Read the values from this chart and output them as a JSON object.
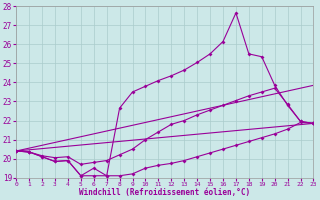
{
  "xlabel": "Windchill (Refroidissement éolien,°C)",
  "xlim": [
    0,
    23
  ],
  "ylim": [
    19,
    28
  ],
  "yticks": [
    19,
    20,
    21,
    22,
    23,
    24,
    25,
    26,
    27,
    28
  ],
  "xticks": [
    0,
    1,
    2,
    3,
    4,
    5,
    6,
    7,
    8,
    9,
    10,
    11,
    12,
    13,
    14,
    15,
    16,
    17,
    18,
    19,
    20,
    21,
    22,
    23
  ],
  "bg_color": "#cce8e8",
  "grid_color": "#aacccc",
  "line_color": "#990099",
  "line_lw": 0.8,
  "marker_size": 2.0,
  "line1_x": [
    0,
    1,
    2,
    3,
    4,
    5,
    6,
    7,
    8,
    9,
    10,
    11,
    12,
    13,
    14,
    15,
    16,
    17,
    18,
    19,
    20,
    21,
    22,
    23
  ],
  "line1_y": [
    20.4,
    20.35,
    20.1,
    19.85,
    19.9,
    19.1,
    19.1,
    19.1,
    19.1,
    19.2,
    19.5,
    19.65,
    19.75,
    19.9,
    20.1,
    20.3,
    20.5,
    20.7,
    20.9,
    21.1,
    21.3,
    21.55,
    21.9,
    21.85
  ],
  "line2_x": [
    0,
    1,
    2,
    3,
    4,
    5,
    6,
    7,
    8,
    9,
    10,
    11,
    12,
    13,
    14,
    15,
    16,
    17,
    18,
    19,
    20,
    21,
    22,
    23
  ],
  "line2_y": [
    20.4,
    20.35,
    20.15,
    20.05,
    20.1,
    19.7,
    19.8,
    19.9,
    20.2,
    20.5,
    21.0,
    21.4,
    21.8,
    22.0,
    22.3,
    22.55,
    22.8,
    23.05,
    23.3,
    23.5,
    23.7,
    22.85,
    21.95,
    21.85
  ],
  "line3_x": [
    0,
    1,
    2,
    3,
    4,
    5,
    6,
    7,
    8,
    9,
    10,
    11,
    12,
    13,
    14,
    15,
    16,
    17,
    18,
    19,
    20,
    21,
    22,
    23
  ],
  "line3_y": [
    20.4,
    20.35,
    20.1,
    19.85,
    19.9,
    19.1,
    19.5,
    19.1,
    22.65,
    23.5,
    23.8,
    24.1,
    24.35,
    24.65,
    25.05,
    25.5,
    26.15,
    27.65,
    25.5,
    25.35,
    23.85,
    22.8,
    21.95,
    21.85
  ],
  "line4_x": [
    0,
    23
  ],
  "line4_y": [
    20.4,
    21.85
  ],
  "line5_x": [
    0,
    23
  ],
  "line5_y": [
    20.4,
    23.85
  ]
}
